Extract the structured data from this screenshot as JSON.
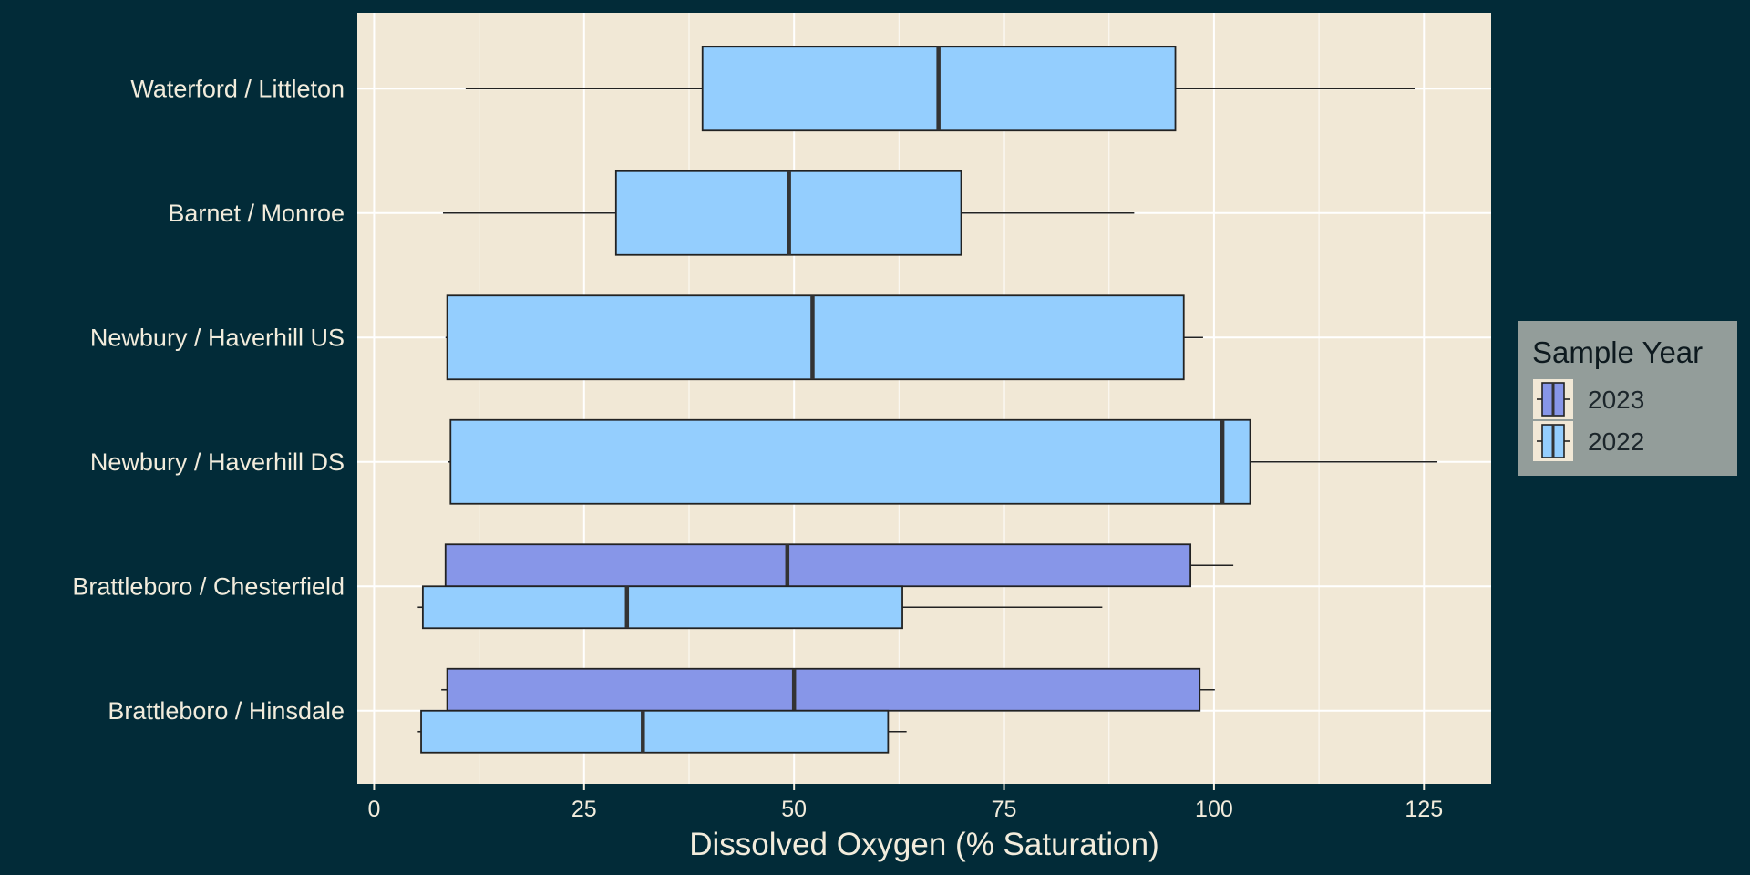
{
  "chart_data": {
    "type": "boxplot",
    "orientation": "horizontal",
    "title": "",
    "xlabel": "Dissolved Oxygen (% Saturation)",
    "ylabel": "",
    "xlim": [
      -2,
      133
    ],
    "x_ticks": [
      0,
      25,
      50,
      75,
      100,
      125
    ],
    "grid": true,
    "legend": {
      "title": "Sample Year",
      "placement": "right",
      "entries": [
        {
          "label": "2023",
          "color": "#8796e8"
        },
        {
          "label": "2022",
          "color": "#94cefe"
        }
      ]
    },
    "categories": [
      "Waterford / Littleton",
      "Barnet / Monroe",
      "Newbury / Haverhill US",
      "Newbury / Haverhill DS",
      "Brattleboro / Chesterfield",
      "Brattleboro / Hinsdale"
    ],
    "series": [
      {
        "name": "2023",
        "color": "#8796e8",
        "boxes": [
          {
            "category": "Brattleboro / Chesterfield",
            "min": 8.5,
            "q1": 8.5,
            "median": 49.2,
            "q3": 97.2,
            "max": 102.3
          },
          {
            "category": "Brattleboro / Hinsdale",
            "min": 8,
            "q1": 8.7,
            "median": 50,
            "q3": 98.3,
            "max": 100.1
          }
        ]
      },
      {
        "name": "2022",
        "color": "#94cefe",
        "boxes": [
          {
            "category": "Waterford / Littleton",
            "min": 10.9,
            "q1": 39.1,
            "median": 67.2,
            "q3": 95.4,
            "max": 123.9
          },
          {
            "category": "Barnet / Monroe",
            "min": 8.2,
            "q1": 28.8,
            "median": 49.4,
            "q3": 69.9,
            "max": 90.5
          },
          {
            "category": "Newbury / Haverhill US",
            "min": 8.5,
            "q1": 8.7,
            "median": 52.2,
            "q3": 96.4,
            "max": 98.7
          },
          {
            "category": "Newbury / Haverhill DS",
            "min": 8.8,
            "q1": 9.1,
            "median": 101,
            "q3": 104.3,
            "max": 126.6
          },
          {
            "category": "Brattleboro / Chesterfield",
            "min": 5.2,
            "q1": 5.8,
            "median": 30.1,
            "q3": 62.9,
            "max": 86.7
          },
          {
            "category": "Brattleboro / Hinsdale",
            "min": 5.2,
            "q1": 5.6,
            "median": 32,
            "q3": 61.2,
            "max": 63.4
          }
        ]
      }
    ]
  }
}
